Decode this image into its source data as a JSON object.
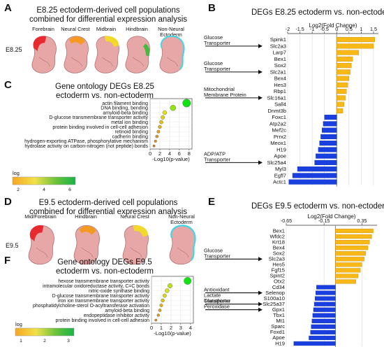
{
  "panels": {
    "A": {
      "letter": "A",
      "title_line1": "E8.25 ectoderm-derived cell populations",
      "title_line2": "combined for differential expression analysis",
      "stage": "E8.25",
      "embryos": [
        "Forebrain",
        "Neural Crest",
        "Midbrain",
        "Hindbrain",
        "Non-Neural Ectoderm"
      ],
      "region_colors": [
        "#e8232a",
        "#f59a1c",
        "#f3dc25",
        "#3dbd3b",
        "#3fd6e6"
      ]
    },
    "B": {
      "letter": "B",
      "title": "DEGs E8.25 ectoderm vs. non-ectoderm"
    },
    "C": {
      "letter": "C",
      "title_line1": "Gene ontology DEGs E8.25",
      "title_line2": "ectoderm vs. non-ectoderm"
    },
    "D": {
      "letter": "D",
      "title_line1": "E9.5 ectoderm-derived cell populations",
      "title_line2": "combined for differential expression analysis",
      "stage": "E9.5",
      "embryos": [
        "Mid/Forebrain",
        "Hindbrain",
        "Neural Crest",
        "Non-Neural Ectoderm"
      ],
      "region_colors": [
        "#e8232a",
        "#f59a1c",
        "#f3dc25",
        "#3fd6e6"
      ]
    },
    "E": {
      "letter": "E",
      "title": "DEGs E9.5 ectoderm vs. non-ectoderm"
    },
    "F": {
      "letter": "F",
      "title_line1": "Gene ontology DEGs E9.5",
      "title_line2": "ectoderm vs. non-ectoderm"
    }
  },
  "chart_data": [
    {
      "id": "B",
      "type": "bar",
      "orientation": "horizontal",
      "title": "DEGs E8.25 ectoderm vs. non-ectoderm",
      "xlabel": "Log2(Fold Change)",
      "xticks": [
        "-2",
        "-1.5",
        "-1",
        "-0.5",
        "0",
        "0.5",
        "1",
        "1.5"
      ],
      "xlim": [
        -2,
        1.7
      ],
      "categories": [
        "Spink1",
        "Slc2a3",
        "Larp7",
        "Bex1",
        "Sox2",
        "Slc2a1",
        "Bex4",
        "Hes3",
        "Rbp1",
        "Slc16a1",
        "Sall4",
        "Dnmt3b",
        "Foxc1",
        "Atp2a2",
        "Mef2c",
        "Prrx2",
        "Meox1",
        "H19",
        "Apoe",
        "Slc25a4",
        "Myl3",
        "Egfl7",
        "Actc1"
      ],
      "values": [
        1.55,
        1.5,
        0.9,
        0.65,
        0.6,
        0.55,
        0.5,
        0.45,
        0.4,
        0.35,
        0.3,
        0.25,
        -0.5,
        -0.55,
        -0.6,
        -0.65,
        -0.7,
        -0.75,
        -0.85,
        -0.9,
        -1.6,
        -1.8,
        -1.95
      ],
      "colors": {
        "up": "#f7b818",
        "down": "#1a3fe0"
      },
      "annotations": [
        {
          "text": [
            "Glucose",
            "Transporter"
          ],
          "target": "Slc2a3"
        },
        {
          "text": [
            "Glucose",
            "Transporter"
          ],
          "target": "Slc2a1"
        },
        {
          "text": [
            "Mitochondrial",
            "Membrane Protein"
          ],
          "target": "Slc16a1"
        },
        {
          "text": [
            "ADP/ATP",
            "Transporter"
          ],
          "target": "Slc25a4"
        }
      ]
    },
    {
      "id": "C",
      "type": "scatter",
      "title": "Gene ontology DEGs E8.25 ectoderm vs. non-ectoderm",
      "xlabel": "-Log10(p-value)",
      "xticks": [
        "0",
        "2",
        "4",
        "6",
        "8"
      ],
      "xlim": [
        0,
        8.6
      ],
      "categories": [
        "actin filament binding",
        "DNA binding, bending",
        "amyloid-beta binding",
        "D-glucose transmembrane transporter activity",
        "metal ion binding",
        "protein binding involved in cell-cell adhesion",
        "retinoid binding",
        "cadherin binding",
        "hydrogen-exporting ATPase, phosphorylative mechanism",
        "hydrolase activity on carbon-nitrogen (not peptide) bonds"
      ],
      "values": [
        7.5,
        4.7,
        3.0,
        2.6,
        2.3,
        2.0,
        1.7,
        1.4,
        1.1,
        0.8
      ],
      "legend": {
        "label": "log",
        "ticks": [
          "2",
          "4",
          "6"
        ]
      }
    },
    {
      "id": "E",
      "type": "bar",
      "orientation": "horizontal",
      "title": "DEGs E9.5 ectoderm vs. non-ectoderm",
      "xlabel": "Log2(Fold Change)",
      "xticks": [
        "-0.65",
        "-0.15",
        "0.35"
      ],
      "xlim": [
        -0.65,
        0.55
      ],
      "categories": [
        "Bex1",
        "Wfdc2",
        "Krt18",
        "Bex4",
        "Sox2",
        "Slc2a3",
        "Hes5",
        "Fgf15",
        "Spint2",
        "Otx2",
        "Cd34",
        "Selenop",
        "S100a10",
        "Slc25a37",
        "Gpx1",
        "Tbx1",
        "Mt1",
        "Sparc",
        "Foxd1",
        "Apoe",
        "H19"
      ],
      "values": [
        0.5,
        0.48,
        0.45,
        0.43,
        0.4,
        0.38,
        0.35,
        0.33,
        0.3,
        0.27,
        -0.25,
        -0.26,
        -0.27,
        -0.28,
        -0.29,
        -0.3,
        -0.31,
        -0.32,
        -0.33,
        -0.35,
        -0.55
      ],
      "colors": {
        "up": "#f7b818",
        "down": "#1a3fe0"
      },
      "annotations": [
        {
          "text": [
            "Glucose",
            "Transporter"
          ],
          "target": "Slc2a3"
        },
        {
          "text": [
            "Antioxidant"
          ],
          "target": "Selenop"
        },
        {
          "text": [
            "Lactate",
            "Transporter"
          ],
          "target": "Slc25a37"
        },
        {
          "text": [
            "Glutathione",
            "Peroxidase"
          ],
          "target": "Gpx1"
        }
      ]
    },
    {
      "id": "F",
      "type": "scatter",
      "title": "Gene ontology DEGs E9.5 ectoderm vs. non-ectoderm",
      "xlabel": "-Log10(p-value)",
      "xticks": [
        "0",
        "1",
        "2",
        "3",
        "4"
      ],
      "xlim": [
        0,
        4.3
      ],
      "categories": [
        "hexose transmembrane transporter activity",
        "intramolecular oxidoreductase activity, C=C bonds",
        "nitric-oxide synthase binding",
        "D-glucose transmembrane transporter activity",
        "iron ion transmembrane transporter activity",
        "phosphatidylcholine-sterol O-acyltransferase activation",
        "amyloid-beta binding",
        "endopeptidase inhibitor activity",
        "protein binding involved in cell-cell adhesion"
      ],
      "values": [
        3.7,
        1.9,
        1.6,
        1.35,
        1.15,
        1.0,
        0.85,
        0.7,
        0.45
      ],
      "legend": {
        "label": "log",
        "ticks": [
          "1",
          "2",
          "3"
        ]
      }
    }
  ]
}
